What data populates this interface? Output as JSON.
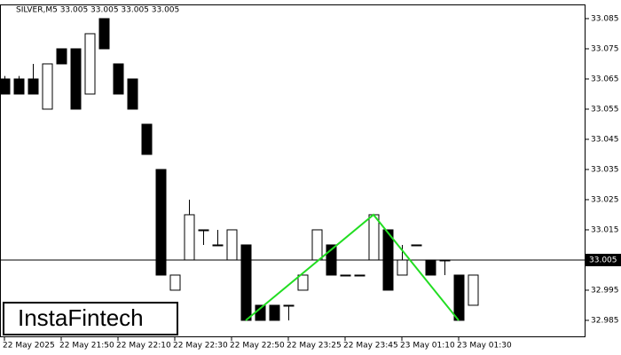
{
  "chart_data": {
    "type": "candlestick",
    "title": "SILVER,M5  33.005 33.005 33.005 33.005",
    "watermark": "InstaFintech",
    "categories": [
      "22 May 2025",
      null,
      null,
      null,
      "22 May 21:50",
      null,
      null,
      null,
      "22 May 22:10",
      null,
      null,
      null,
      "22 May 22:30",
      null,
      null,
      null,
      "22 May 22:50",
      null,
      null,
      null,
      "22 May 23:25",
      null,
      null,
      null,
      "22 May 23:45",
      null,
      null,
      null,
      "23 May 01:10",
      null,
      null,
      null,
      "23 May 01:30",
      null
    ],
    "open": [
      33.065,
      33.065,
      33.065,
      33.055,
      33.075,
      33.075,
      33.06,
      33.085,
      33.07,
      33.065,
      33.05,
      33.035,
      32.995,
      33.005,
      33.015,
      33.01,
      33.005,
      33.01,
      32.99,
      32.99,
      32.99,
      32.995,
      33.005,
      33.01,
      33.0,
      33.0,
      33.005,
      33.015,
      33.0,
      33.01,
      33.005,
      33.005,
      33.0,
      32.99
    ],
    "high": [
      33.066,
      33.066,
      33.07,
      33.07,
      33.075,
      33.075,
      33.08,
      33.085,
      33.07,
      33.065,
      33.05,
      33.035,
      33.0,
      33.025,
      33.015,
      33.015,
      33.015,
      33.01,
      32.99,
      32.99,
      32.99,
      33.0,
      33.015,
      33.01,
      33.0,
      33.0,
      33.02,
      33.015,
      33.01,
      33.01,
      33.005,
      33.005,
      33.0,
      33.0
    ],
    "low": [
      33.06,
      33.06,
      33.06,
      33.055,
      33.07,
      33.055,
      33.06,
      33.075,
      33.06,
      33.055,
      33.04,
      33.0,
      32.995,
      33.005,
      33.01,
      33.01,
      33.005,
      32.985,
      32.985,
      32.985,
      32.985,
      32.995,
      33.005,
      33.0,
      33.0,
      33.0,
      33.005,
      32.995,
      33.0,
      33.01,
      33.0,
      33.0,
      32.985,
      32.99
    ],
    "close": [
      33.06,
      33.06,
      33.06,
      33.07,
      33.07,
      33.055,
      33.08,
      33.075,
      33.06,
      33.055,
      33.04,
      33.0,
      33.0,
      33.02,
      33.015,
      33.01,
      33.015,
      32.985,
      32.985,
      32.985,
      32.99,
      33.0,
      33.015,
      33.0,
      33.0,
      33.0,
      33.02,
      32.995,
      33.005,
      33.01,
      33.0,
      33.005,
      32.985,
      33.0
    ],
    "up_color": "#ffffff",
    "down_color": "#000000",
    "current_price": 33.005,
    "pattern": {
      "color": "#22dd22",
      "x": [
        17,
        26,
        32
      ],
      "values": [
        32.985,
        33.02,
        32.985
      ]
    },
    "ylim": [
      32.9794,
      33.0897
    ],
    "yticks": [
      32.985,
      32.995,
      33.015,
      33.025,
      33.035,
      33.045,
      33.055,
      33.065,
      33.075,
      33.085
    ]
  }
}
